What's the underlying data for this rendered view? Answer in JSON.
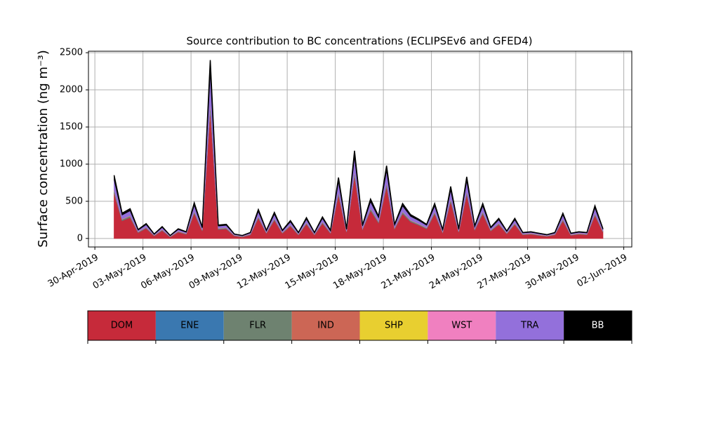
{
  "chart_data": {
    "type": "stacked_area",
    "title": "Source contribution to BC concentrations (ECLIPSEv6 and GFED4)",
    "y_label": "Surface concentration (ng m⁻³)",
    "x": [
      1.2,
      1.7,
      2.2,
      2.7,
      3.2,
      3.7,
      4.2,
      4.7,
      5.2,
      5.7,
      6.2,
      6.7,
      7.2,
      7.7,
      8.2,
      8.7,
      9.2,
      9.7,
      10.2,
      10.7,
      11.2,
      11.7,
      12.2,
      12.7,
      13.2,
      13.7,
      14.2,
      14.7,
      15.2,
      15.7,
      16.2,
      16.7,
      17.2,
      17.7,
      18.2,
      18.7,
      19.2,
      19.7,
      20.2,
      20.7,
      21.2,
      21.7,
      22.2,
      22.7,
      23.2,
      23.7,
      24.2,
      24.7,
      25.2,
      25.7,
      26.2,
      26.7,
      27.2,
      27.7,
      28.2,
      28.7,
      29.2,
      29.7,
      30.2,
      30.7,
      31.2,
      31.7
    ],
    "series": [
      {
        "name": "DOM",
        "color": "#c62a3a",
        "values": [
          612,
          239,
          283,
          79,
          137,
          35,
          108,
          20,
          86,
          57,
          341,
          101,
          1743,
          122,
          130,
          35,
          20,
          49,
          276,
          71,
          247,
          71,
          166,
          49,
          195,
          49,
          203,
          71,
          590,
          86,
          852,
          122,
          378,
          210,
          706,
          130,
          334,
          225,
          181,
          130,
          334,
          79,
          502,
          86,
          597,
          115,
          334,
          101,
          188,
          64,
          188,
          49,
          57,
          42,
          28,
          49,
          239,
          42,
          57,
          49,
          312,
          86
        ]
      },
      {
        "name": "ENE",
        "color": "#3a78b0",
        "values": [
          3,
          3,
          3,
          3,
          3,
          3,
          3,
          3,
          3,
          3,
          3,
          3,
          3,
          3,
          3,
          3,
          3,
          3,
          3,
          3,
          3,
          3,
          3,
          3,
          3,
          3,
          3,
          3,
          3,
          3,
          3,
          3,
          3,
          3,
          3,
          3,
          3,
          3,
          3,
          3,
          3,
          3,
          3,
          3,
          3,
          3,
          3,
          3,
          3,
          3,
          3,
          3,
          3,
          3,
          3,
          3,
          3,
          3,
          3,
          3,
          3,
          3
        ]
      },
      {
        "name": "FLR",
        "color": "#6e8270",
        "values": [
          34,
          14,
          16,
          5,
          8,
          2,
          6,
          2,
          5,
          4,
          19,
          6,
          96,
          7,
          8,
          2,
          2,
          3,
          16,
          4,
          14,
          4,
          10,
          3,
          11,
          3,
          12,
          4,
          33,
          5,
          47,
          7,
          21,
          12,
          39,
          8,
          19,
          13,
          10,
          8,
          19,
          5,
          28,
          5,
          33,
          7,
          19,
          6,
          11,
          4,
          11,
          3,
          4,
          3,
          2,
          3,
          14,
          3,
          4,
          3,
          18,
          5
        ]
      },
      {
        "name": "IND",
        "color": "#cc6655",
        "values": [
          3,
          3,
          3,
          3,
          3,
          3,
          3,
          3,
          3,
          3,
          3,
          3,
          3,
          3,
          3,
          3,
          3,
          3,
          3,
          3,
          3,
          3,
          3,
          3,
          3,
          3,
          3,
          3,
          3,
          3,
          3,
          3,
          3,
          3,
          3,
          3,
          3,
          3,
          3,
          3,
          3,
          3,
          3,
          3,
          3,
          3,
          3,
          3,
          3,
          3,
          3,
          3,
          3,
          3,
          3,
          3,
          3,
          3,
          3,
          3,
          3,
          3
        ]
      },
      {
        "name": "SHP",
        "color": "#e8cf30",
        "values": [
          1,
          1,
          1,
          1,
          1,
          1,
          1,
          1,
          1,
          1,
          1,
          1,
          1,
          1,
          1,
          1,
          1,
          1,
          1,
          1,
          1,
          1,
          1,
          1,
          1,
          1,
          1,
          1,
          1,
          1,
          1,
          1,
          1,
          1,
          1,
          1,
          1,
          1,
          1,
          1,
          1,
          1,
          1,
          1,
          1,
          1,
          1,
          1,
          1,
          1,
          1,
          1,
          1,
          1,
          1,
          1,
          1,
          1,
          1,
          1,
          1,
          1
        ]
      },
      {
        "name": "WST",
        "color": "#f080c0",
        "values": [
          2,
          2,
          2,
          2,
          2,
          2,
          2,
          2,
          2,
          2,
          2,
          2,
          2,
          2,
          2,
          2,
          2,
          2,
          2,
          2,
          2,
          2,
          2,
          2,
          2,
          2,
          2,
          2,
          2,
          2,
          2,
          2,
          2,
          2,
          2,
          2,
          2,
          2,
          2,
          2,
          2,
          2,
          2,
          2,
          2,
          2,
          2,
          2,
          2,
          2,
          2,
          2,
          2,
          2,
          2,
          2,
          2,
          2,
          2,
          2,
          2,
          2
        ]
      },
      {
        "name": "TRA",
        "color": "#9370db",
        "values": [
          136,
          54,
          64,
          19,
          32,
          10,
          26,
          6,
          21,
          14,
          77,
          24,
          384,
          29,
          30,
          10,
          6,
          13,
          62,
          18,
          56,
          18,
          38,
          13,
          45,
          13,
          46,
          18,
          131,
          21,
          189,
          29,
          85,
          48,
          157,
          30,
          75,
          51,
          42,
          30,
          75,
          19,
          112,
          21,
          133,
          27,
          75,
          24,
          43,
          16,
          43,
          13,
          14,
          11,
          8,
          13,
          54,
          11,
          14,
          13,
          70,
          21
        ]
      },
      {
        "name": "BB",
        "color": "#000000",
        "values": [
          60,
          24,
          28,
          8,
          14,
          4,
          11,
          3,
          9,
          6,
          34,
          11,
          168,
          13,
          13,
          4,
          3,
          6,
          27,
          8,
          25,
          8,
          17,
          6,
          20,
          6,
          20,
          8,
          57,
          9,
          83,
          13,
          37,
          21,
          69,
          13,
          33,
          22,
          18,
          13,
          33,
          8,
          49,
          9,
          58,
          12,
          33,
          11,
          19,
          7,
          19,
          6,
          6,
          5,
          4,
          6,
          24,
          5,
          6,
          6,
          31,
          9
        ]
      }
    ],
    "xlim": [
      -0.4,
      33.5
    ],
    "xticks": [
      {
        "value": 0,
        "label": "30-Apr-2019"
      },
      {
        "value": 3,
        "label": "03-May-2019"
      },
      {
        "value": 6,
        "label": "06-May-2019"
      },
      {
        "value": 9,
        "label": "09-May-2019"
      },
      {
        "value": 12,
        "label": "12-May-2019"
      },
      {
        "value": 15,
        "label": "15-May-2019"
      },
      {
        "value": 18,
        "label": "18-May-2019"
      },
      {
        "value": 21,
        "label": "21-May-2019"
      },
      {
        "value": 24,
        "label": "24-May-2019"
      },
      {
        "value": 27,
        "label": "27-May-2019"
      },
      {
        "value": 30,
        "label": "30-May-2019"
      },
      {
        "value": 33,
        "label": "02-Jun-2019"
      }
    ],
    "ylim": [
      -115,
      2520
    ],
    "yticks": [
      0,
      500,
      1000,
      1500,
      2000,
      2500
    ],
    "grid": true
  }
}
